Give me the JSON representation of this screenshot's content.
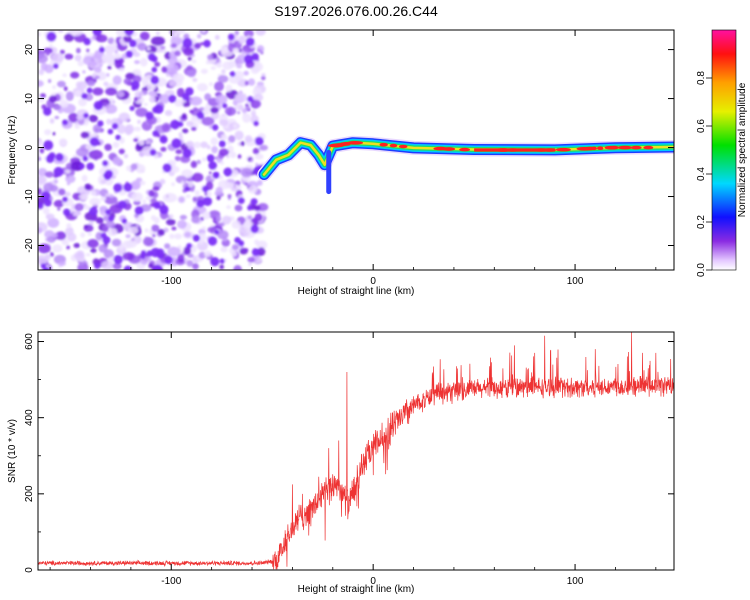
{
  "title": "S197.2026.076.00.26.C44",
  "colors": {
    "snr_line": "#ee3333",
    "frame": "#000000",
    "noise": "#7b2ff7",
    "ridge_edge": "#1e3cff",
    "ridge_core": "#ff2020"
  },
  "chart_data": [
    {
      "type": "heatmap",
      "title": "S197.2026.076.00.26.C44",
      "xlabel": "Height of straight line (km)",
      "ylabel": "Frequency (Hz)",
      "xlim": [
        -166,
        149
      ],
      "ylim": [
        -25,
        24
      ],
      "xticks": [
        -100,
        0,
        100
      ],
      "yticks": [
        -20,
        -10,
        0,
        10,
        20
      ],
      "colorbar": {
        "label": "Normalized spectral amplitude",
        "range": [
          0.0,
          1.0
        ],
        "ticks": [
          "0.0",
          "0.2",
          "0.4",
          "0.6",
          "0.8"
        ]
      },
      "noise_region_x": [
        -166,
        -54
      ],
      "ridge": [
        {
          "x": -54,
          "y": -5.5
        },
        {
          "x": -48,
          "y": -2.5
        },
        {
          "x": -42,
          "y": -1.5
        },
        {
          "x": -36,
          "y": 1.0
        },
        {
          "x": -31,
          "y": 0.5
        },
        {
          "x": -27,
          "y": -1.5
        },
        {
          "x": -24,
          "y": -3.5
        },
        {
          "x": -20,
          "y": 0.3
        },
        {
          "x": -10,
          "y": 1.0
        },
        {
          "x": 0,
          "y": 0.8
        },
        {
          "x": 20,
          "y": 0.0
        },
        {
          "x": 50,
          "y": -0.5
        },
        {
          "x": 90,
          "y": -0.5
        },
        {
          "x": 120,
          "y": 0.0
        },
        {
          "x": 149,
          "y": 0.0
        }
      ],
      "ridge_artifact": {
        "x": -22,
        "y_range": [
          -9,
          -1
        ]
      }
    },
    {
      "type": "line",
      "xlabel": "Height of straight line (km)",
      "ylabel": "SNR (10 * v/v)",
      "xlim": [
        -166,
        149
      ],
      "ylim": [
        0,
        625
      ],
      "xticks": [
        -100,
        0,
        100
      ],
      "yticks": [
        0,
        200,
        400,
        600
      ],
      "series": [
        {
          "name": "SNR",
          "envelope": [
            {
              "x": -166,
              "y": 18
            },
            {
              "x": -55,
              "y": 18
            },
            {
              "x": -48,
              "y": 25
            },
            {
              "x": -42,
              "y": 90
            },
            {
              "x": -36,
              "y": 140
            },
            {
              "x": -30,
              "y": 160
            },
            {
              "x": -25,
              "y": 200
            },
            {
              "x": -18,
              "y": 230
            },
            {
              "x": -12,
              "y": 170
            },
            {
              "x": -6,
              "y": 270
            },
            {
              "x": 0,
              "y": 320
            },
            {
              "x": 10,
              "y": 380
            },
            {
              "x": 20,
              "y": 430
            },
            {
              "x": 30,
              "y": 460
            },
            {
              "x": 50,
              "y": 475
            },
            {
              "x": 80,
              "y": 480
            },
            {
              "x": 110,
              "y": 480
            },
            {
              "x": 149,
              "y": 485
            }
          ],
          "peaks": [
            {
              "x": -40,
              "y": 225
            },
            {
              "x": -35,
              "y": 200
            },
            {
              "x": -27,
              "y": 245
            },
            {
              "x": -22,
              "y": 320
            },
            {
              "x": -17,
              "y": 340
            },
            {
              "x": -13,
              "y": 520
            },
            {
              "x": 70,
              "y": 590
            },
            {
              "x": 85,
              "y": 615
            },
            {
              "x": 110,
              "y": 580
            },
            {
              "x": 128,
              "y": 625
            },
            {
              "x": 140,
              "y": 570
            }
          ]
        }
      ]
    }
  ]
}
